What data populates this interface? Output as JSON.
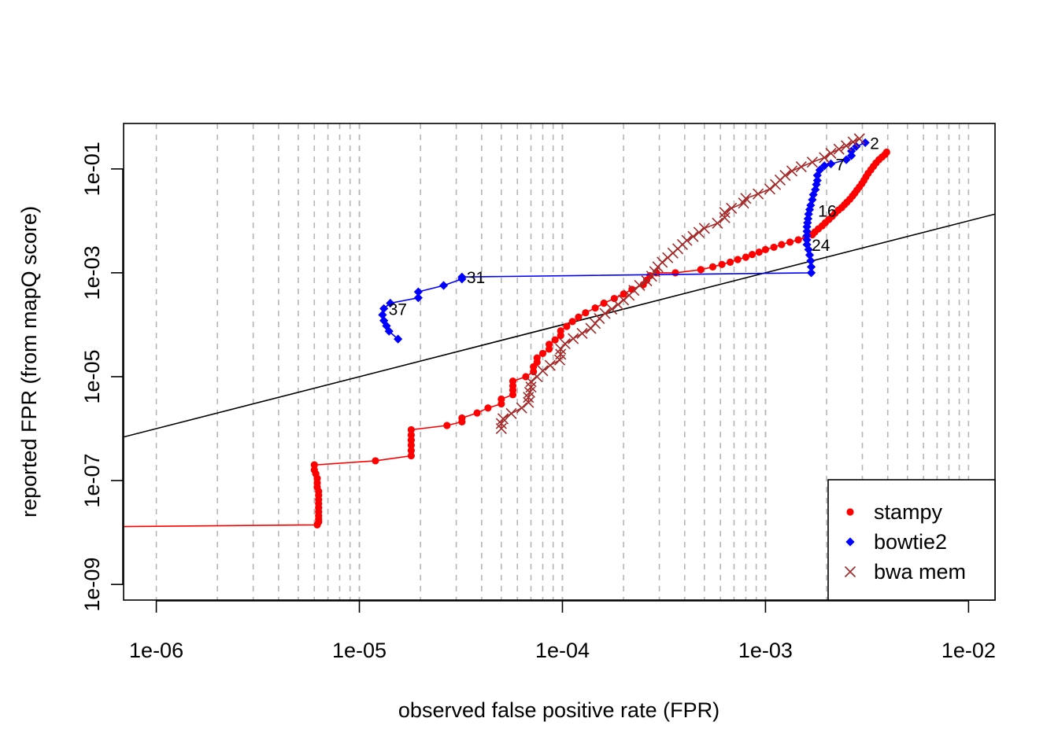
{
  "chart_data": {
    "type": "line",
    "xlabel": "observed false positive rate (FPR)",
    "ylabel": "reported FPR (from mapQ score)",
    "xscale": "log",
    "yscale": "log",
    "xlim": [
      6.9e-07,
      0.0135
    ],
    "ylim": [
      5e-10,
      0.75
    ],
    "x_ticks": [
      1e-06,
      1e-05,
      0.0001,
      0.001,
      0.01
    ],
    "x_tick_labels": [
      "1e-06",
      "1e-05",
      "1e-04",
      "1e-03",
      "1e-02"
    ],
    "y_ticks": [
      1e-09,
      1e-07,
      1e-05,
      0.001,
      0.1
    ],
    "y_tick_labels": [
      "1e-09",
      "1e-07",
      "1e-05",
      "1e-03",
      "1e-01"
    ],
    "grid": "vertical dashed lines at 1,2,...,9 x each power of 10",
    "reference_line": "y = x",
    "legend_position": "bottom-right",
    "series": [
      {
        "name": "stampy",
        "color": "#ff0000",
        "marker": "circle",
        "points": [
          [
            6.5e-07,
            1.3e-08
          ],
          [
            6.2e-06,
            1.4e-08
          ],
          [
            6.3e-06,
            1.6e-08
          ],
          [
            6.3e-06,
            1.8e-08
          ],
          [
            6.3e-06,
            2.1e-08
          ],
          [
            6.3e-06,
            2.5e-08
          ],
          [
            6.3e-06,
            3e-08
          ],
          [
            6.3e-06,
            3.6e-08
          ],
          [
            6.3e-06,
            4.3e-08
          ],
          [
            6.3e-06,
            5.2e-08
          ],
          [
            6.3e-06,
            6.2e-08
          ],
          [
            6.2e-06,
            7.5e-08
          ],
          [
            6.2e-06,
            9e-08
          ],
          [
            6.2e-06,
            1.1e-07
          ],
          [
            6.1e-06,
            1.35e-07
          ],
          [
            6e-06,
            1.6e-07
          ],
          [
            6e-06,
            2e-07
          ],
          [
            1.2e-05,
            2.4e-07
          ],
          [
            1.8e-05,
            3e-07
          ],
          [
            1.8e-05,
            3.8e-07
          ],
          [
            1.8e-05,
            4.8e-07
          ],
          [
            1.8e-05,
            6e-07
          ],
          [
            1.8e-05,
            7.5e-07
          ],
          [
            1.8e-05,
            9.5e-07
          ],
          [
            2.7e-05,
            1.15e-06
          ],
          [
            3.2e-05,
            1.35e-06
          ],
          [
            3.2e-05,
            1.6e-06
          ],
          [
            3.8e-05,
            2e-06
          ],
          [
            4.3e-05,
            2.5e-06
          ],
          [
            5e-05,
            3e-06
          ],
          [
            5e-05,
            3.7e-06
          ],
          [
            5.7e-05,
            4.5e-06
          ],
          [
            5.7e-05,
            5.5e-06
          ],
          [
            5.7e-05,
            6.7e-06
          ],
          [
            5.7e-05,
            8.2e-06
          ],
          [
            6.6e-05,
            1e-05
          ],
          [
            7.2e-05,
            1.25e-05
          ],
          [
            7.2e-05,
            1.55e-05
          ],
          [
            7.5e-05,
            1.9e-05
          ],
          [
            7.5e-05,
            2.3e-05
          ],
          [
            8e-05,
            2.8e-05
          ],
          [
            8.6e-05,
            3.4e-05
          ],
          [
            8.6e-05,
            4.2e-05
          ],
          [
            9.2e-05,
            5.1e-05
          ],
          [
            9.8e-05,
            6.2e-05
          ],
          [
            9.8e-05,
            7.6e-05
          ],
          [
            0.000105,
            9.3e-05
          ],
          [
            0.000112,
            0.000115
          ],
          [
            0.00012,
            0.00014
          ],
          [
            0.00013,
            0.00017
          ],
          [
            0.000145,
            0.00021
          ],
          [
            0.00016,
            0.00026
          ],
          [
            0.00018,
            0.00032
          ],
          [
            0.0002,
            0.00039
          ],
          [
            0.00022,
            0.00048
          ],
          [
            0.00025,
            0.00059
          ],
          [
            0.00026,
            0.00072
          ],
          [
            0.00027,
            0.00088
          ],
          [
            0.00029,
            0.001
          ],
          [
            0.00036,
            0.001
          ],
          [
            0.00048,
            0.00115
          ],
          [
            0.00055,
            0.0013
          ],
          [
            0.00061,
            0.00145
          ],
          [
            0.00067,
            0.0016
          ],
          [
            0.00073,
            0.0018
          ],
          [
            0.0008,
            0.002
          ],
          [
            0.00086,
            0.00225
          ],
          [
            0.00093,
            0.0025
          ],
          [
            0.001,
            0.0028
          ],
          [
            0.0011,
            0.0031
          ],
          [
            0.0012,
            0.0035
          ],
          [
            0.00132,
            0.0039
          ],
          [
            0.00145,
            0.0043
          ],
          [
            0.00158,
            0.0048
          ],
          [
            0.0017,
            0.0054
          ],
          [
            0.00175,
            0.0061
          ],
          [
            0.00182,
            0.007
          ],
          [
            0.0019,
            0.008
          ],
          [
            0.00197,
            0.0092
          ],
          [
            0.00205,
            0.0106
          ],
          [
            0.00213,
            0.0122
          ],
          [
            0.0022,
            0.014
          ],
          [
            0.00228,
            0.016
          ],
          [
            0.00237,
            0.018
          ],
          [
            0.00245,
            0.0205
          ],
          [
            0.00252,
            0.023
          ],
          [
            0.0026,
            0.026
          ],
          [
            0.00268,
            0.03
          ],
          [
            0.00275,
            0.034
          ],
          [
            0.00282,
            0.039
          ],
          [
            0.0029,
            0.045
          ],
          [
            0.00298,
            0.052
          ],
          [
            0.00305,
            0.06
          ],
          [
            0.00312,
            0.07
          ],
          [
            0.0032,
            0.082
          ],
          [
            0.0033,
            0.096
          ],
          [
            0.0034,
            0.112
          ],
          [
            0.0035,
            0.13
          ],
          [
            0.00362,
            0.15
          ],
          [
            0.00375,
            0.17
          ],
          [
            0.00388,
            0.19
          ],
          [
            0.00395,
            0.21
          ]
        ]
      },
      {
        "name": "bowtie2",
        "color": "#0000ff",
        "marker": "diamond",
        "points": [
          [
            0.0031,
            0.32
          ],
          [
            0.0028,
            0.27
          ],
          [
            0.00265,
            0.22
          ],
          [
            0.00265,
            0.18
          ],
          [
            0.0025,
            0.15
          ],
          [
            0.0021,
            0.125
          ],
          [
            0.00195,
            0.115
          ],
          [
            0.00185,
            0.095
          ],
          [
            0.0018,
            0.075
          ],
          [
            0.0018,
            0.06
          ],
          [
            0.00178,
            0.05
          ],
          [
            0.00176,
            0.04
          ],
          [
            0.00172,
            0.032
          ],
          [
            0.0017,
            0.0255
          ],
          [
            0.00167,
            0.02
          ],
          [
            0.00165,
            0.0165
          ],
          [
            0.00163,
            0.0135
          ],
          [
            0.00162,
            0.011
          ],
          [
            0.00161,
            0.0092
          ],
          [
            0.0016,
            0.0077
          ],
          [
            0.0016,
            0.0063
          ],
          [
            0.0016,
            0.0052
          ],
          [
            0.0016,
            0.0043
          ],
          [
            0.0016,
            0.0035
          ],
          [
            0.00163,
            0.0028
          ],
          [
            0.00165,
            0.0022
          ],
          [
            0.00167,
            0.0017
          ],
          [
            0.00168,
            0.0013
          ],
          [
            0.00168,
            0.001
          ],
          [
            3.2e-05,
            0.00083
          ],
          [
            3.2e-05,
            0.00076
          ],
          [
            2.6e-05,
            0.00057
          ],
          [
            1.95e-05,
            0.00043
          ],
          [
            1.95e-05,
            0.00033
          ],
          [
            1.42e-05,
            0.00026
          ],
          [
            1.32e-05,
            0.000205
          ],
          [
            1.3e-05,
            0.000155
          ],
          [
            1.32e-05,
            0.00012
          ],
          [
            1.36e-05,
            9.5e-05
          ],
          [
            1.4e-05,
            7.5e-05
          ],
          [
            1.55e-05,
            5.3e-05
          ]
        ]
      },
      {
        "name": "bwa mem",
        "color": "#a52a2a",
        "marker": "x",
        "points": [
          [
            5e-05,
            1e-06
          ],
          [
            5e-05,
            1.25e-06
          ],
          [
            5.1e-05,
            1.55e-06
          ],
          [
            5.6e-05,
            1.95e-06
          ],
          [
            6.3e-05,
            2.5e-06
          ],
          [
            6.8e-05,
            3.2e-06
          ],
          [
            6.8e-05,
            4e-06
          ],
          [
            6.9e-05,
            5e-06
          ],
          [
            7e-05,
            6.3e-06
          ],
          [
            7e-05,
            8e-06
          ],
          [
            7.5e-05,
            1e-05
          ],
          [
            8e-05,
            1.3e-05
          ],
          [
            8.7e-05,
            1.65e-05
          ],
          [
            9.7e-05,
            2.1e-05
          ],
          [
            9.8e-05,
            2.7e-05
          ],
          [
            9.8e-05,
            3.4e-05
          ],
          [
            0.000103,
            4.3e-05
          ],
          [
            0.000113,
            5.4e-05
          ],
          [
            0.000125,
            6.8e-05
          ],
          [
            0.000138,
            8.5e-05
          ],
          [
            0.000145,
            0.000106
          ],
          [
            0.000152,
            0.000132
          ],
          [
            0.000162,
            0.000165
          ],
          [
            0.000175,
            0.0002
          ],
          [
            0.000188,
            0.000245
          ],
          [
            0.0002,
            0.0003
          ],
          [
            0.000213,
            0.00037
          ],
          [
            0.000225,
            0.00046
          ],
          [
            0.00024,
            0.00057
          ],
          [
            0.00026,
            0.0007
          ],
          [
            0.000275,
            0.00086
          ],
          [
            0.000285,
            0.00105
          ],
          [
            0.000295,
            0.0013
          ],
          [
            0.00031,
            0.0016
          ],
          [
            0.00033,
            0.00195
          ],
          [
            0.00035,
            0.0024
          ],
          [
            0.00037,
            0.0029
          ],
          [
            0.00039,
            0.0035
          ],
          [
            0.00041,
            0.0042
          ],
          [
            0.00044,
            0.005
          ],
          [
            0.00047,
            0.006
          ],
          [
            0.0005,
            0.0072
          ],
          [
            0.00058,
            0.009
          ],
          [
            0.00063,
            0.0115
          ],
          [
            0.00063,
            0.0145
          ],
          [
            0.00068,
            0.0175
          ],
          [
            0.00078,
            0.022
          ],
          [
            0.0008,
            0.027
          ],
          [
            0.00092,
            0.033
          ],
          [
            0.00105,
            0.041
          ],
          [
            0.00112,
            0.05
          ],
          [
            0.00118,
            0.061
          ],
          [
            0.00125,
            0.075
          ],
          [
            0.00135,
            0.091
          ],
          [
            0.0015,
            0.11
          ],
          [
            0.0017,
            0.135
          ],
          [
            0.00195,
            0.165
          ],
          [
            0.0021,
            0.2
          ],
          [
            0.0023,
            0.24
          ],
          [
            0.0025,
            0.28
          ],
          [
            0.0027,
            0.33
          ],
          [
            0.0029,
            0.38
          ]
        ]
      }
    ],
    "annotations": [
      {
        "text": "2",
        "x": 0.0031,
        "y": 0.32,
        "series": "bowtie2"
      },
      {
        "text": "7",
        "x": 0.0021,
        "y": 0.125,
        "series": "bowtie2"
      },
      {
        "text": "16",
        "x": 0.00172,
        "y": 0.016,
        "series": "bowtie2"
      },
      {
        "text": "24",
        "x": 0.0016,
        "y": 0.0035,
        "series": "bowtie2"
      },
      {
        "text": "31",
        "x": 3.2e-05,
        "y": 0.00083,
        "series": "bowtie2"
      },
      {
        "text": "37",
        "x": 1.32e-05,
        "y": 0.000205,
        "series": "bowtie2"
      }
    ]
  }
}
